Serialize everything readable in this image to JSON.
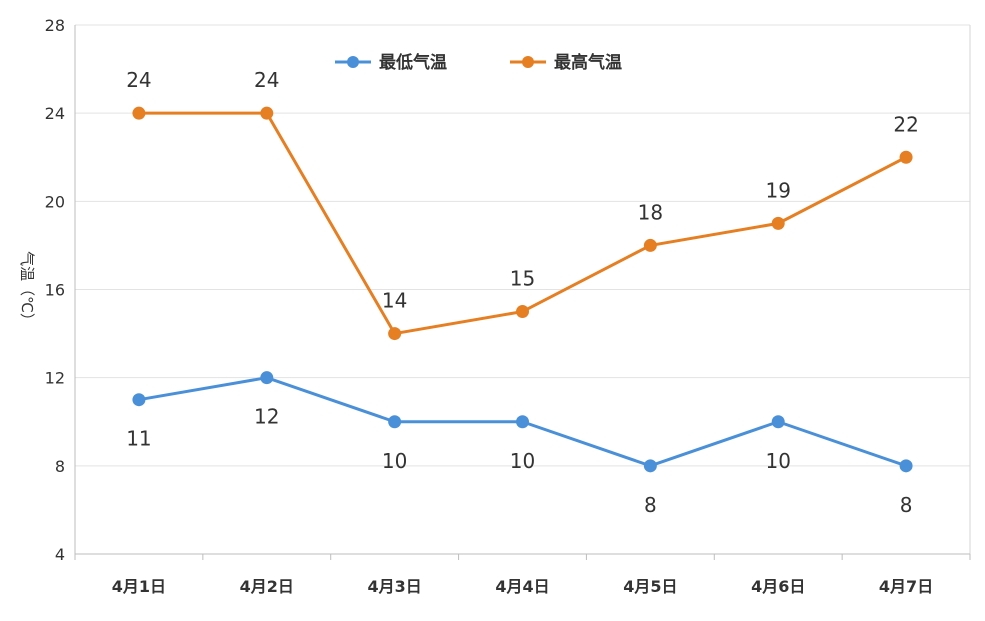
{
  "chart_data": {
    "type": "line",
    "categories": [
      "4月1日",
      "4月2日",
      "4月3日",
      "4月4日",
      "4月5日",
      "4月6日",
      "4月7日"
    ],
    "series": [
      {
        "name": "最低气温",
        "values": [
          11,
          12,
          10,
          10,
          8,
          10,
          8
        ],
        "color": "#4A90D9",
        "label_position": "below"
      },
      {
        "name": "最高气温",
        "values": [
          24,
          24,
          14,
          15,
          18,
          19,
          22
        ],
        "color": "#E67E22",
        "label_position": "above"
      }
    ],
    "title": "",
    "xlabel": "",
    "ylabel": "气温（℃）",
    "ylim": [
      4,
      28
    ],
    "yticks": [
      4,
      8,
      12,
      16,
      20,
      24,
      28
    ],
    "grid": "horizontal",
    "legend": "top-center"
  }
}
